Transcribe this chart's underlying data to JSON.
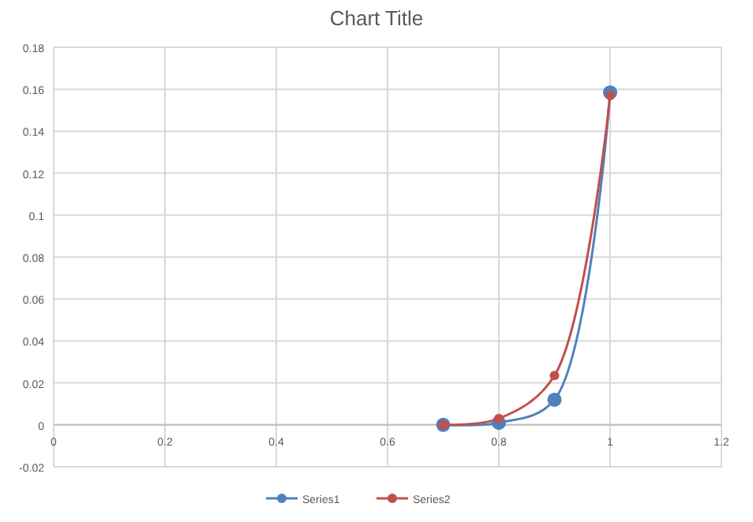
{
  "chart_data": {
    "type": "line",
    "title": "Chart Title",
    "x": [
      0.7,
      0.8,
      0.9,
      1.0
    ],
    "series": [
      {
        "name": "Series1",
        "color": "#4f81bd",
        "values": [
          0,
          0.001,
          0.012,
          0.1585
        ]
      },
      {
        "name": "Series2",
        "color": "#c0504d",
        "values": [
          0,
          0.003,
          0.0235,
          0.157
        ]
      }
    ],
    "xlim": [
      0,
      1.2
    ],
    "xticks": [
      0,
      0.2,
      0.4,
      0.6,
      0.8,
      1,
      1.2
    ],
    "ylim": [
      -0.02,
      0.18
    ],
    "yticks": [
      -0.02,
      0,
      0.02,
      0.04,
      0.06,
      0.08,
      0.1,
      0.12,
      0.14,
      0.16,
      0.18
    ],
    "grid": true,
    "legend": "bottom",
    "marker": "circle",
    "line_style": "solid"
  }
}
